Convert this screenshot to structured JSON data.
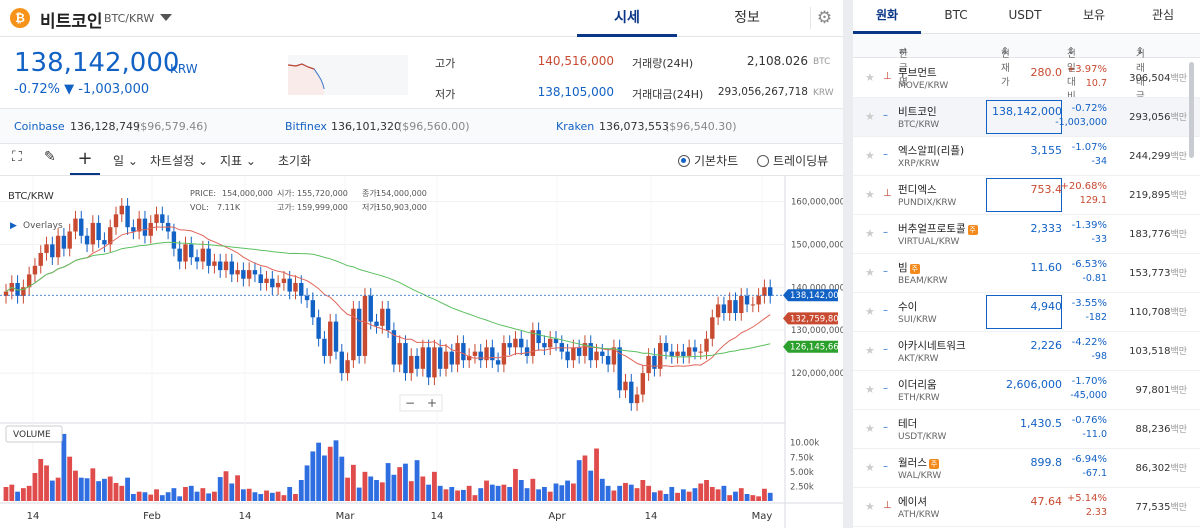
{
  "header": {
    "coin_logo": "₿",
    "coin_name": "비트코인",
    "pair": "BTC/KRW",
    "tab_price": "시세",
    "tab_info": "정보",
    "settings_icon": "gear-icon"
  },
  "price": {
    "value": "138,142,000",
    "unit": "KRW",
    "change_pct": "-0.72%",
    "change_amt": "▼ -1,003,000"
  },
  "stats": {
    "high_label": "고가",
    "high": "140,516,000",
    "low_label": "저가",
    "low": "138,105,000",
    "vol_label": "거래량(24H)",
    "vol": "2,108.026",
    "vol_unit": "BTC",
    "amt_label": "거래대금(24H)",
    "amt": "293,056,267,718",
    "amt_unit": "KRW"
  },
  "exchanges": [
    {
      "name": "Coinbase",
      "price": "136,128,749",
      "usd": "($96,579.46)"
    },
    {
      "name": "Bitfinex",
      "price": "136,101,320",
      "usd": "($96,560.00)"
    },
    {
      "name": "Kraken",
      "price": "136,073,553",
      "usd": "($96,540.30)"
    }
  ],
  "toolbar": {
    "interval": "일",
    "chart_settings": "차트설정",
    "indicator": "지표",
    "reset": "초기화",
    "basic_chart": "기본차트",
    "tradingview": "트레이딩뷰"
  },
  "chart_info": {
    "symbol": "BTC/KRW",
    "overlays": "Overlays",
    "price_label": "PRICE:",
    "price_val": "154,000,000",
    "vol_label": "VOL:",
    "vol_val": "7.11K",
    "open_label": "시가:",
    "open_val": "155,720,000",
    "high_label": "고가:",
    "high_val": "159,999,000",
    "close_label": "종가:",
    "close_val": "154,000,000",
    "low_label": "저가:",
    "low_val": "150,903,000",
    "volume_label": "VOLUME",
    "zoom_out": "−",
    "zoom_in": "+"
  },
  "chart_data": {
    "type": "candlestick",
    "x_labels": [
      "14",
      "Feb",
      "14",
      "Mar",
      "14",
      "Apr",
      "14",
      "May"
    ],
    "y_ticks": [
      "160,000,000",
      "150,000,000",
      "140,000,000",
      "130,000,000",
      "120,000,000"
    ],
    "ylim": [
      110000000,
      165000000
    ],
    "vol_ticks": [
      "10.00k",
      "7.50k",
      "5.00k",
      "2.50k"
    ],
    "price_tags": [
      {
        "value": "138,142,000",
        "color": "#1261c4"
      },
      {
        "value": "132,759,800",
        "color": "#c84a31"
      },
      {
        "value": "126,145,660",
        "color": "#2ca02c"
      }
    ],
    "closes": [
      139,
      141,
      138,
      140,
      143,
      145,
      148,
      150,
      147,
      152,
      149,
      153,
      156,
      152,
      150,
      155,
      151,
      150,
      154,
      157,
      159,
      154,
      153,
      156,
      152,
      155,
      157,
      155,
      153,
      149,
      146,
      150,
      147,
      146,
      149,
      145,
      146,
      144,
      146,
      143,
      144,
      142,
      144,
      143,
      141,
      142,
      140,
      141,
      142,
      139,
      141,
      138,
      137,
      133,
      128,
      124,
      132,
      125,
      120,
      123,
      135,
      124,
      138,
      132,
      131,
      135,
      130,
      122,
      127,
      120,
      124,
      121,
      126,
      119,
      126,
      121,
      125,
      122,
      127,
      123,
      124,
      125,
      123,
      126,
      123,
      122,
      127,
      126,
      128,
      126,
      124,
      130,
      127,
      126,
      128,
      127,
      125,
      123,
      126,
      124,
      127,
      123,
      125,
      124,
      122,
      126,
      116,
      118,
      113,
      115,
      120,
      124,
      121,
      127,
      125,
      124,
      125,
      124,
      126,
      125,
      125,
      128,
      133,
      136,
      134,
      137,
      134,
      138,
      136,
      136,
      138,
      140,
      138
    ],
    "volumes": [
      2.4,
      2.8,
      1.6,
      2.2,
      2.6,
      4.8,
      7.2,
      6.1,
      3.5,
      4.0,
      11.5,
      7.6,
      5.2,
      4.0,
      3.9,
      5.6,
      3.4,
      3.8,
      4.2,
      3.1,
      2.6,
      4.0,
      1.2,
      1.6,
      1.5,
      1.1,
      2.0,
      1.0,
      1.5,
      2.2,
      0.8,
      2.4,
      2.6,
      1.6,
      2.2,
      1.3,
      1.6,
      4.1,
      5.1,
      3.0,
      4.4,
      2.0,
      2.1,
      1.5,
      1.2,
      1.8,
      1.4,
      1.6,
      1.0,
      2.4,
      1.2,
      3.6,
      6.1,
      8.5,
      10.0,
      7.8,
      9.3,
      10.4,
      7.6,
      4.0,
      6.2,
      2.3,
      5.0,
      4.2,
      3.6,
      3.2,
      6.5,
      4.5,
      5.8,
      6.4,
      3.4,
      7.0,
      4.2,
      2.8,
      5.0,
      2.6,
      2.0,
      2.4,
      1.8,
      1.9,
      2.6,
      1.0,
      2.2,
      3.5,
      2.8,
      2.6,
      2.8,
      2.4,
      5.5,
      3.6,
      2.2,
      3.8,
      2.0,
      2.4,
      1.6,
      3.0,
      2.7,
      3.5,
      3.0,
      7.0,
      7.8,
      5.2,
      9.0,
      3.8,
      2.6,
      1.8,
      2.6,
      3.1,
      2.8,
      2.2,
      3.6,
      2.6,
      1.5,
      1.8,
      1.2,
      2.4,
      1.4,
      2.0,
      1.6,
      2.2,
      3.0,
      3.6,
      2.4,
      2.0,
      2.6,
      1.0,
      1.6,
      2.2,
      1.2,
      1.0,
      0.8,
      2.1,
      1.4
    ]
  },
  "market": {
    "tabs": [
      "원화",
      "BTC",
      "USDT",
      "보유",
      "관심"
    ],
    "cols": {
      "name": "한글명",
      "price": "현재가",
      "change": "전일대비",
      "volume": "거래대금"
    },
    "unit": "백만",
    "rows": [
      {
        "name": "무브먼트",
        "pair": "MOVE/KRW",
        "price": "280.0",
        "pct": "+3.97%",
        "diff": "10.7",
        "vol": "306,504",
        "dir": "up",
        "badge": ""
      },
      {
        "name": "비트코인",
        "pair": "BTC/KRW",
        "price": "138,142,000",
        "pct": "-0.72%",
        "diff": "-1,003,000",
        "vol": "293,056",
        "dir": "dn",
        "badge": ""
      },
      {
        "name": "엑스알피(리플)",
        "pair": "XRP/KRW",
        "price": "3,155",
        "pct": "-1.07%",
        "diff": "-34",
        "vol": "244,299",
        "dir": "dn",
        "badge": ""
      },
      {
        "name": "펀디엑스",
        "pair": "PUNDIX/KRW",
        "price": "753.4",
        "pct": "+20.68%",
        "diff": "129.1",
        "vol": "219,895",
        "dir": "up",
        "badge": ""
      },
      {
        "name": "버추얼프로토콜",
        "pair": "VIRTUAL/KRW",
        "price": "2,333",
        "pct": "-1.39%",
        "diff": "-33",
        "vol": "183,776",
        "dir": "dn",
        "badge": "주"
      },
      {
        "name": "빔",
        "pair": "BEAM/KRW",
        "price": "11.60",
        "pct": "-6.53%",
        "diff": "-0.81",
        "vol": "153,773",
        "dir": "dn",
        "badge": "주"
      },
      {
        "name": "수이",
        "pair": "SUI/KRW",
        "price": "4,940",
        "pct": "-3.55%",
        "diff": "-182",
        "vol": "110,708",
        "dir": "dn",
        "badge": ""
      },
      {
        "name": "아카시네트워크",
        "pair": "AKT/KRW",
        "price": "2,226",
        "pct": "-4.22%",
        "diff": "-98",
        "vol": "103,518",
        "dir": "dn",
        "badge": ""
      },
      {
        "name": "이더리움",
        "pair": "ETH/KRW",
        "price": "2,606,000",
        "pct": "-1.70%",
        "diff": "-45,000",
        "vol": "97,801",
        "dir": "dn",
        "badge": ""
      },
      {
        "name": "테더",
        "pair": "USDT/KRW",
        "price": "1,430.5",
        "pct": "-0.76%",
        "diff": "-11.0",
        "vol": "88,236",
        "dir": "dn",
        "badge": ""
      },
      {
        "name": "월러스",
        "pair": "WAL/KRW",
        "price": "899.8",
        "pct": "-6.94%",
        "diff": "-67.1",
        "vol": "86,302",
        "dir": "dn",
        "badge": "주"
      },
      {
        "name": "에이셔",
        "pair": "ATH/KRW",
        "price": "47.64",
        "pct": "+5.14%",
        "diff": "2.33",
        "vol": "77,535",
        "dir": "up",
        "badge": ""
      }
    ]
  }
}
